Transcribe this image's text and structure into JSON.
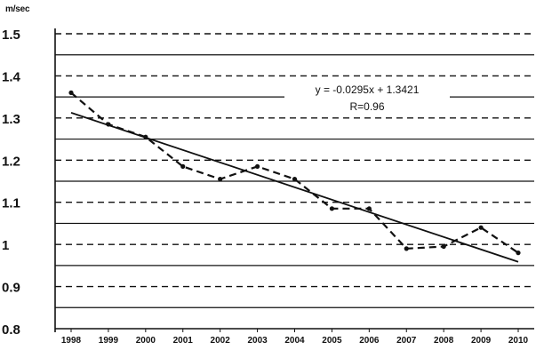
{
  "chart_data": {
    "type": "line",
    "ylabel": "m/sec",
    "ylim": [
      0.8,
      1.5
    ],
    "yticks": [
      "1.5",
      "1.4",
      "1.3",
      "1.2",
      "1.1",
      "1",
      "0.9",
      "0.8"
    ],
    "categories": [
      "1998",
      "1999",
      "2000",
      "2001",
      "2002",
      "2003",
      "2004",
      "2005",
      "2006",
      "2007",
      "2008",
      "2009",
      "2010"
    ],
    "series": [
      {
        "values": [
          1.36,
          1.285,
          1.255,
          1.185,
          1.155,
          1.185,
          1.155,
          1.085,
          1.085,
          0.99,
          0.995,
          1.04,
          0.98
        ],
        "style": "dashed",
        "color": "#111111"
      }
    ],
    "trendline": {
      "equation": "y = -0.0295x + 1.3421",
      "r": "R=0.96",
      "slope": -0.0295,
      "intercept": 1.3421,
      "color": "#111111"
    },
    "grid": true
  },
  "colors": {
    "text": "#111111",
    "grid": "#111111",
    "background": "#ffffff"
  }
}
